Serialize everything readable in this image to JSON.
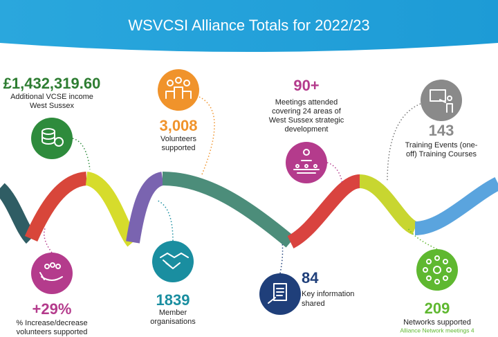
{
  "title": "WSVCSI Alliance Totals for 2022/23",
  "stats": [
    {
      "value": "£1,432,319.60",
      "label": [
        "Additional VCSE income",
        "West Sussex"
      ]
    },
    {
      "value": "3,008",
      "label": [
        "Volunteers",
        "supported"
      ]
    },
    {
      "value": "90+",
      "label": [
        "Meetings attended",
        "covering 24 areas of",
        "West Sussex strategic",
        "development"
      ]
    },
    {
      "value": "143",
      "label": [
        "Training Events (one-",
        "off) Training Courses"
      ]
    },
    {
      "value": "+29%",
      "label": [
        "% Increase/decrease",
        "volunteers supported"
      ]
    },
    {
      "value": "1839",
      "label": [
        "Member",
        "organisations"
      ]
    },
    {
      "value": "84",
      "label": [
        "Key information",
        "shared"
      ]
    },
    {
      "value": "209",
      "label": [
        "Networks supported"
      ],
      "note": "Alliance Network meetings 4"
    }
  ]
}
